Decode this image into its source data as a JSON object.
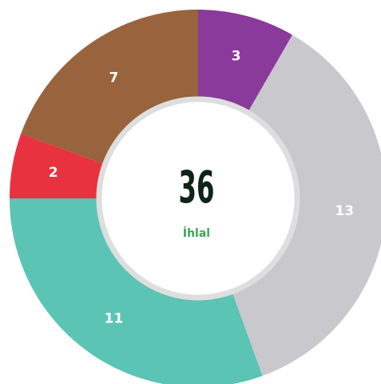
{
  "chart_data": {
    "type": "donut",
    "categories": [
      null,
      null,
      null,
      null,
      null
    ],
    "values": [
      3,
      13,
      11,
      2,
      7
    ],
    "colors": [
      "#8a3a9a",
      "#c9c8cd",
      "#5cc4b4",
      "#e8323f",
      "#99633d"
    ],
    "total": 36,
    "center_label": "İhlal"
  }
}
